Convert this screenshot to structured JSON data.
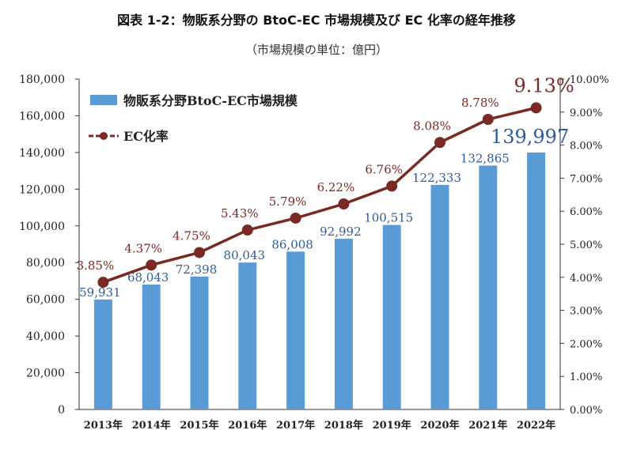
{
  "title": "図表 1-2：物販系分野の BtoC-EC 市場規模及び EC 化率の経年推移",
  "subtitle": "（市場規模の単位：億円）",
  "colors": {
    "bar": "#5b9bd5",
    "bar_label": "#2e5c9a",
    "line": "#7a2a24",
    "axis": "#333333"
  },
  "chart_data": {
    "type": "bar",
    "categories": [
      "2013年",
      "2014年",
      "2015年",
      "2016年",
      "2017年",
      "2018年",
      "2019年",
      "2020年",
      "2021年",
      "2022年"
    ],
    "series": [
      {
        "name": "物販系分野BtoC-EC市場規模",
        "type": "bar",
        "axis": "left",
        "values": [
          59931,
          68043,
          72398,
          80043,
          86008,
          92992,
          100515,
          122333,
          132865,
          139997
        ],
        "labels": [
          "59,931",
          "68,043",
          "72,398",
          "80,043",
          "86,008",
          "92,992",
          "100,515",
          "122,333",
          "132,865",
          "139,997"
        ]
      },
      {
        "name": "EC化率",
        "type": "line",
        "axis": "right",
        "values": [
          3.85,
          4.37,
          4.75,
          5.43,
          5.79,
          6.22,
          6.76,
          8.08,
          8.78,
          9.13
        ],
        "labels": [
          "3.85%",
          "4.37%",
          "4.75%",
          "5.43%",
          "5.79%",
          "6.22%",
          "6.76%",
          "8.08%",
          "8.78%",
          "9.13%"
        ]
      }
    ],
    "ylim": [
      0,
      180000
    ],
    "yticks": [
      "0",
      "20,000",
      "40,000",
      "60,000",
      "80,000",
      "100,000",
      "120,000",
      "140,000",
      "160,000",
      "180,000"
    ],
    "y2lim": [
      0,
      10
    ],
    "y2ticks": [
      "0.00%",
      "1.00%",
      "2.00%",
      "3.00%",
      "4.00%",
      "5.00%",
      "6.00%",
      "7.00%",
      "8.00%",
      "9.00%",
      "10.00%"
    ],
    "grid": false,
    "legend_position": "top-left"
  }
}
